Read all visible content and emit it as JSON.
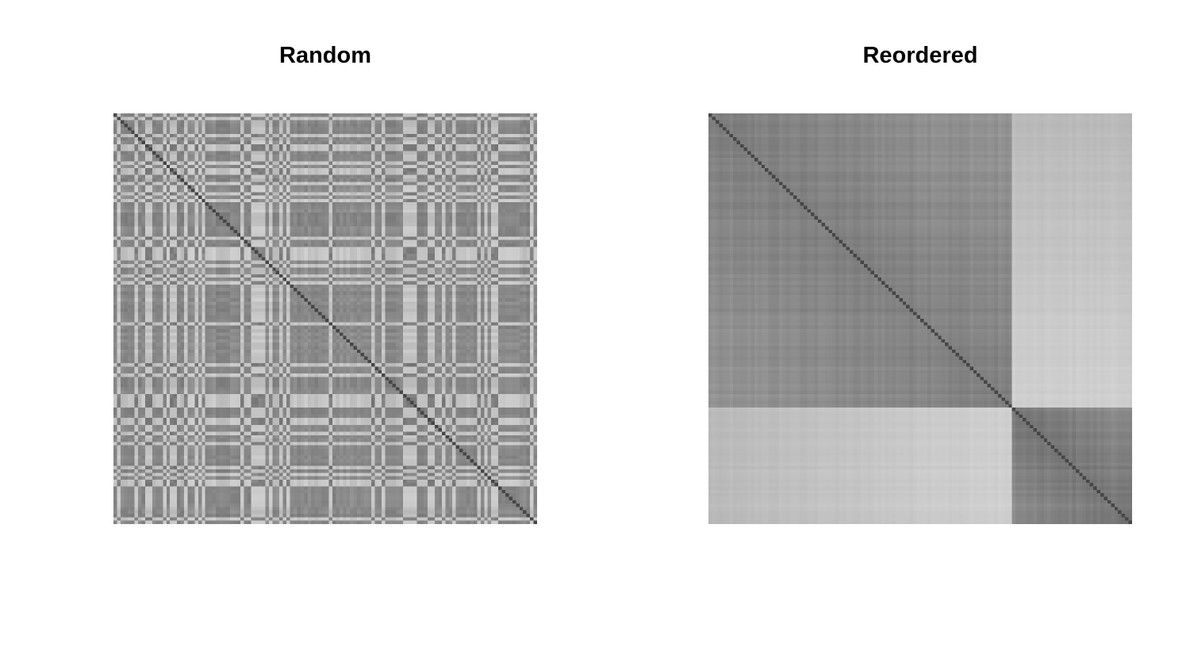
{
  "chart_data": [
    {
      "type": "heatmap",
      "title": "Random",
      "description_of_pattern": "",
      "n": 120,
      "colormap": "grayscale",
      "clusters": [
        86,
        34
      ],
      "ordering": "random",
      "xlabel": "",
      "ylabel": "",
      "grid": false,
      "legend": "none"
    },
    {
      "type": "heatmap",
      "title": "Reordered",
      "n": 120,
      "colormap": "grayscale",
      "clusters": [
        86,
        34
      ],
      "ordering": "clustered",
      "xlabel": "",
      "ylabel": "",
      "grid": false,
      "legend": "none"
    }
  ],
  "colors": {
    "background": "#ffffff",
    "title": "#000000",
    "dark_cell": "#555555",
    "light_cell": "#e6e6e6"
  }
}
